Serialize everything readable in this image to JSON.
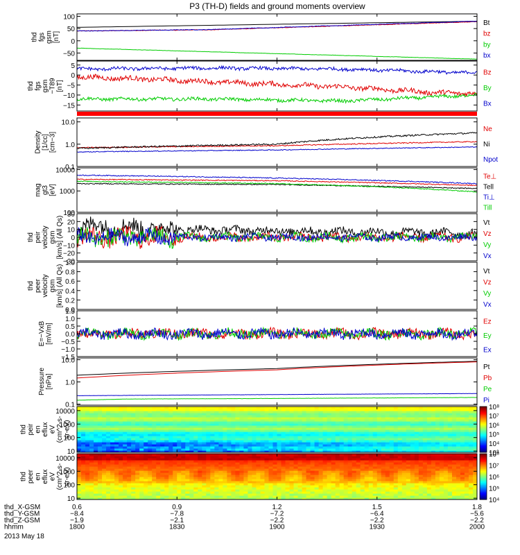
{
  "title": "P3 (TH-D) fields and ground moments overview",
  "colors": {
    "black": "#000000",
    "red": "#e00000",
    "green": "#00cc00",
    "blue": "#0000cc",
    "bar": "#ff0000"
  },
  "chart_data": [
    {
      "type": "line",
      "id": "fgs",
      "ylabel": [
        "thd",
        "fgs",
        "gsm",
        "[nT]"
      ],
      "ylim": [
        -80,
        110
      ],
      "yticks": [
        -50,
        0,
        50,
        100
      ],
      "ytick_labels": [
        "−50",
        "0",
        "50",
        "100"
      ],
      "series": [
        {
          "name": "Bt",
          "color": "#000000",
          "x": [
            0.6,
            1.8
          ],
          "y": [
            55,
            80
          ],
          "noise": 0
        },
        {
          "name": "bz",
          "color": "#e00000",
          "x": [
            0.6,
            1.0,
            1.8
          ],
          "y": [
            40,
            45,
            78
          ],
          "noise": 1
        },
        {
          "name": "by",
          "color": "#00cc00",
          "x": [
            0.6,
            1.8
          ],
          "y": [
            -30,
            -75
          ],
          "noise": 0.5
        },
        {
          "name": "bx",
          "color": "#0000cc",
          "x": [
            0.6,
            1.0,
            1.8
          ],
          "y": [
            40,
            46,
            80
          ],
          "noise": 1
        }
      ]
    },
    {
      "type": "line",
      "id": "dfgs",
      "ylabel": [
        "thd",
        "fgs",
        "gsm",
        "−T89",
        "[nT]"
      ],
      "ylim": [
        -18,
        7
      ],
      "yticks": [
        -15,
        -10,
        -5,
        0,
        5
      ],
      "ytick_labels": [
        "−15",
        "−10",
        "−5",
        "0",
        "5"
      ],
      "series": [
        {
          "name": "Bz",
          "color": "#e00000",
          "x": [
            0.6,
            0.8,
            1.1,
            1.4,
            1.7,
            1.8
          ],
          "y": [
            -1,
            -2,
            -4,
            -6,
            -9,
            -9
          ],
          "noise": 1.2
        },
        {
          "name": "By",
          "color": "#00cc00",
          "x": [
            0.6,
            1.0,
            1.4,
            1.8
          ],
          "y": [
            -12,
            -12,
            -13,
            -10
          ],
          "noise": 0.8
        },
        {
          "name": "Bx",
          "color": "#0000cc",
          "x": [
            0.6,
            1.0,
            1.4,
            1.8
          ],
          "y": [
            3,
            3.5,
            3,
            1
          ],
          "noise": 0.8
        }
      ]
    },
    {
      "type": "line",
      "id": "density",
      "log": true,
      "ylabel": [
        "Density",
        "[1/cc]",
        "[cm−3]"
      ],
      "ylim": [
        0.1,
        15
      ],
      "yticks": [
        0.1,
        1.0,
        10.0
      ],
      "ytick_labels": [
        "0.1",
        "1.0",
        "10.0"
      ],
      "series": [
        {
          "name": "Ne",
          "color": "#e00000",
          "x": [
            0.6,
            1.2,
            1.8
          ],
          "y": [
            0.7,
            0.85,
            1.3
          ],
          "noise": 0.05
        },
        {
          "name": "Ni",
          "color": "#000000",
          "x": [
            0.6,
            1.2,
            1.8
          ],
          "y": [
            0.65,
            1.0,
            3.2
          ],
          "noise": 0.08
        },
        {
          "name": "Npot",
          "color": "#0000cc",
          "x": [
            0.6,
            1.2,
            1.8
          ],
          "y": [
            0.45,
            0.55,
            0.75
          ],
          "noise": 0.04
        }
      ]
    },
    {
      "type": "line",
      "id": "temp",
      "log": true,
      "ylabel": [
        "mag",
        "gt3",
        "[eV]"
      ],
      "ylim": [
        100,
        12000
      ],
      "yticks": [
        100,
        1000,
        10000
      ],
      "ytick_labels": [
        "100",
        "1000",
        "10000"
      ],
      "series": [
        {
          "name": "Te⊥",
          "color": "#e00000",
          "x": [
            0.6,
            1.2,
            1.8
          ],
          "y": [
            3500,
            3000,
            1800
          ],
          "noise": 0.05
        },
        {
          "name": "Tell",
          "color": "#000000",
          "x": [
            0.6,
            1.2,
            1.8
          ],
          "y": [
            2200,
            2000,
            1300
          ],
          "noise": 0.05
        },
        {
          "name": "Ti⊥",
          "color": "#0000cc",
          "x": [
            0.6,
            1.2,
            1.8
          ],
          "y": [
            5500,
            4000,
            2200
          ],
          "noise": 0.05
        },
        {
          "name": "Till",
          "color": "#00cc00",
          "x": [
            0.6,
            1.2,
            1.8
          ],
          "y": [
            2800,
            2200,
            900
          ],
          "noise": 0.05
        }
      ]
    },
    {
      "type": "line",
      "id": "peir",
      "ylabel": [
        "thd",
        "peir",
        "velocity",
        "gsm",
        "[km/s] (All Qs)"
      ],
      "ylim": [
        -30,
        30
      ],
      "yticks": [
        -30,
        -20,
        -10,
        0,
        10,
        20,
        30
      ],
      "ytick_labels": [
        "−30",
        "−20",
        "−10",
        "0",
        "10",
        "20",
        "30"
      ],
      "series": [
        {
          "name": "Vt",
          "color": "#000000",
          "x": [
            0.6,
            0.9,
            1.8
          ],
          "y": [
            15,
            10,
            5
          ],
          "noise": 5
        },
        {
          "name": "Vz",
          "color": "#e00000",
          "x": [
            0.6,
            0.9,
            1.8
          ],
          "y": [
            0,
            0,
            0
          ],
          "noise": 5
        },
        {
          "name": "Vy",
          "color": "#00cc00",
          "x": [
            0.6,
            0.9,
            1.8
          ],
          "y": [
            0,
            0,
            0
          ],
          "noise": 5
        },
        {
          "name": "Vx",
          "color": "#0000cc",
          "x": [
            0.6,
            0.9,
            1.8
          ],
          "y": [
            0,
            0,
            0
          ],
          "noise": 4
        }
      ]
    },
    {
      "type": "line",
      "id": "peer",
      "ylabel": [
        "thd",
        "peer",
        "velocity",
        "gsm",
        "[km/s] (All Qs)"
      ],
      "ylim": [
        0,
        1.0
      ],
      "yticks": [
        0,
        0.2,
        0.4,
        0.6,
        0.8,
        1.0
      ],
      "ytick_labels": [
        "0.0",
        "0.2",
        "0.4",
        "0.6",
        "0.8",
        "1.0"
      ],
      "series": [
        {
          "name": "Vt",
          "color": "#000000",
          "x": [],
          "y": [],
          "noise": 0
        },
        {
          "name": "Vz",
          "color": "#e00000",
          "x": [],
          "y": [],
          "noise": 0
        },
        {
          "name": "Vy",
          "color": "#00cc00",
          "x": [],
          "y": [],
          "noise": 0
        },
        {
          "name": "Vx",
          "color": "#0000cc",
          "x": [],
          "y": [],
          "noise": 0
        }
      ]
    },
    {
      "type": "line",
      "id": "efield",
      "ylabel": [
        "E=−VxB",
        "[mV/m]"
      ],
      "ylim": [
        -1.5,
        1.5
      ],
      "yticks": [
        -1.5,
        -1.0,
        -0.5,
        0,
        0.5,
        1.0,
        1.5
      ],
      "ytick_labels": [
        "−1.5",
        "−1.0",
        "−0.5",
        "0.0",
        "0.5",
        "1.0",
        "1.5"
      ],
      "series": [
        {
          "name": "Ez",
          "color": "#e00000",
          "x": [
            0.6,
            1.8
          ],
          "y": [
            0,
            0
          ],
          "noise": 0.3
        },
        {
          "name": "Ey",
          "color": "#00cc00",
          "x": [
            0.6,
            1.8
          ],
          "y": [
            0,
            0
          ],
          "noise": 0.3
        },
        {
          "name": "Ex",
          "color": "#0000cc",
          "x": [
            0.6,
            1.8
          ],
          "y": [
            0,
            0
          ],
          "noise": 0.3
        }
      ]
    },
    {
      "type": "line",
      "id": "pressure",
      "log": true,
      "ylabel": [
        "Pressure",
        "[nPa]"
      ],
      "ylim": [
        0.09,
        12
      ],
      "yticks": [
        0.1,
        1.0,
        10.0
      ],
      "ytick_labels": [
        "0.1",
        "1.0",
        "10.0"
      ],
      "series": [
        {
          "name": "Pt",
          "color": "#000000",
          "x": [
            0.6,
            1.2,
            1.8
          ],
          "y": [
            2.0,
            4.0,
            8.5
          ],
          "noise": 0
        },
        {
          "name": "Pb",
          "color": "#e00000",
          "x": [
            0.6,
            1.2,
            1.8
          ],
          "y": [
            1.5,
            3.5,
            8.0
          ],
          "noise": 0
        },
        {
          "name": "Pe",
          "color": "#00cc00",
          "x": [
            0.6,
            0.75,
            1.2,
            1.8
          ],
          "y": [
            0.15,
            0.17,
            0.18,
            0.2
          ],
          "noise": 0.01
        },
        {
          "name": "Pi",
          "color": "#0000cc",
          "x": [
            0.6,
            1.2,
            1.8
          ],
          "y": [
            0.24,
            0.27,
            0.3
          ],
          "noise": 0.01
        }
      ]
    },
    {
      "type": "heatmap",
      "id": "peir_eflux",
      "log": true,
      "ylabel": [
        "thd",
        "peir",
        "en",
        "eflux",
        "eV",
        "(cm^2-s-",
        "sr-eV)"
      ],
      "ylim": [
        8,
        20000
      ],
      "yticks": [
        10,
        100,
        1000,
        10000
      ],
      "ytick_labels": [
        "10",
        "100",
        "1000",
        "10000"
      ],
      "colorbar": {
        "labels": [
          "10³",
          "10⁴",
          "10⁵",
          "10⁶",
          "10⁷",
          "10⁸"
        ],
        "range": [
          3,
          8
        ]
      }
    },
    {
      "type": "heatmap",
      "id": "peer_eflux",
      "log": true,
      "ylabel": [
        "thd",
        "peer",
        "en",
        "eflux",
        "eV",
        "(cm^2-s-",
        "sr-eV)"
      ],
      "ylim": [
        8,
        20000
      ],
      "yticks": [
        10,
        100,
        1000,
        10000
      ],
      "ytick_labels": [
        "10",
        "100",
        "1000",
        "10000"
      ],
      "colorbar": {
        "labels": [
          "10⁴",
          "10⁵",
          "10⁶",
          "10⁷",
          "10⁸"
        ],
        "range": [
          4,
          8
        ]
      }
    }
  ],
  "x_axis": {
    "ticks": [
      0.6,
      0.9,
      1.2,
      1.5,
      1.8
    ],
    "rows": [
      {
        "label": "thd_X-GSM",
        "values": [
          "0.6",
          "0.9",
          "1.2",
          "1.5",
          "1.8"
        ]
      },
      {
        "label": "thd_Y-GSM",
        "values": [
          "−8.4",
          "−7.8",
          "−7.2",
          "−6.4",
          "−5.6"
        ]
      },
      {
        "label": "thd_Z-GSM",
        "values": [
          "−1.9",
          "−2.1",
          "−2.2",
          "−2.2",
          "−2.2"
        ]
      },
      {
        "label": "hhmm",
        "values": [
          "1800",
          "1830",
          "1900",
          "1930",
          "2000"
        ]
      }
    ],
    "date": "2013 May 18"
  }
}
